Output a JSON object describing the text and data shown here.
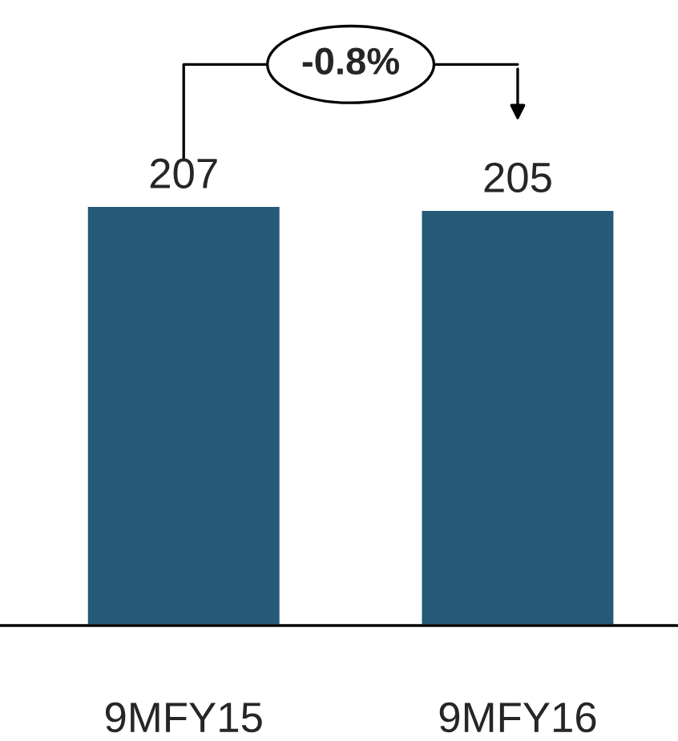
{
  "chart_data": {
    "type": "bar",
    "categories": [
      "9MFY15",
      "9MFY16"
    ],
    "values": [
      207,
      205
    ],
    "color": "#255a78",
    "data_labels": true,
    "annotations": [
      "-0.8%"
    ],
    "grid": false,
    "legend": false
  }
}
